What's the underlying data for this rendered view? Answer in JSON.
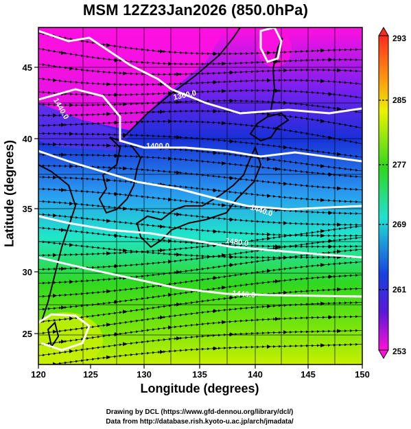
{
  "title": "MSM 12Z23Jan2026 (850.0hPa)",
  "x_axis": {
    "label": "Longitude (degrees)",
    "ticks": [
      "120",
      "125",
      "130",
      "135",
      "140",
      "145",
      "150"
    ]
  },
  "y_axis": {
    "label": "Latitude  (degrees)",
    "ticks": [
      "25",
      "30",
      "35",
      "40",
      "45"
    ]
  },
  "colorbar": {
    "ticks": [
      "293",
      "285",
      "277",
      "269",
      "261",
      "253"
    ]
  },
  "contours": [
    {
      "label": "1360.0"
    },
    {
      "label": "1400.0"
    },
    {
      "label": "1440.0"
    },
    {
      "label": "1440.0"
    },
    {
      "label": "1480.0"
    },
    {
      "label": "1440.0"
    }
  ],
  "credits": {
    "line1": "Drawing by DCL (https://www.gfd-dennou.org/library/dcl/)",
    "line2": "Data from http://database.rish.kyoto-u.ac.jp/arch/jmadata/"
  },
  "colors": {
    "cold": "#ff11dd",
    "blue": "#1a2ad8",
    "cyan": "#1fe0d0",
    "green": "#2ed81e",
    "yellow": "#d8f400",
    "warm": "#ff2a1e"
  }
}
